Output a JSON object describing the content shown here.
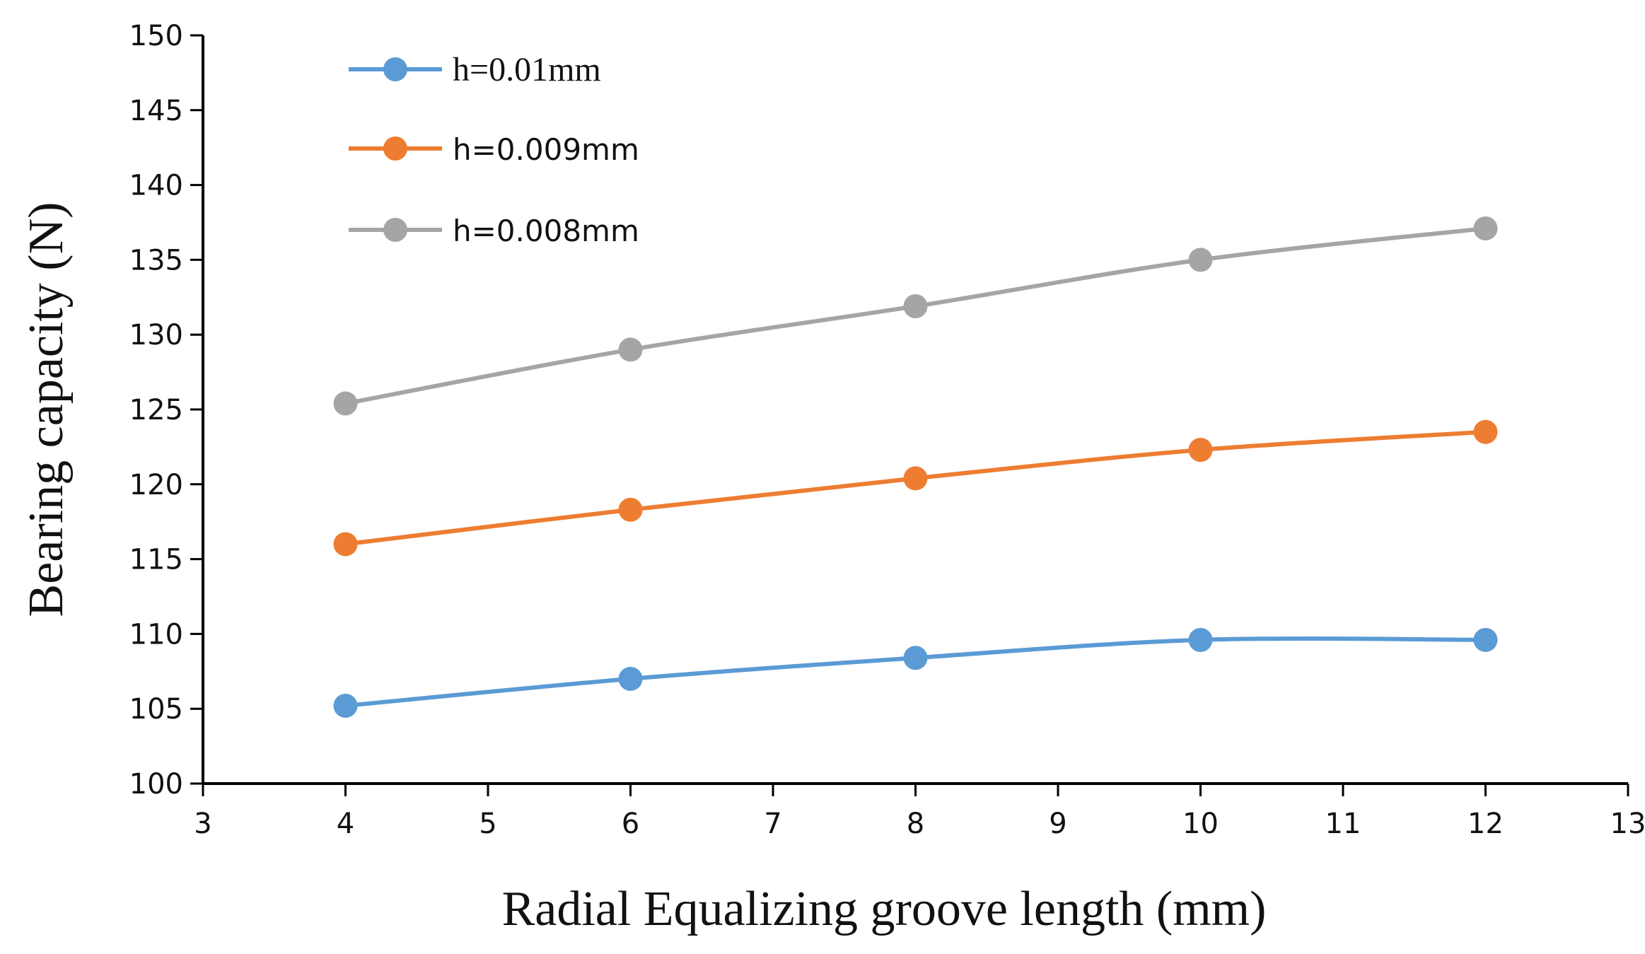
{
  "chart_data": {
    "type": "line",
    "xlabel": "Radial Equalizing groove length (mm)",
    "ylabel": "Bearing capacity (N)",
    "xlim": [
      3,
      13
    ],
    "ylim": [
      100,
      150
    ],
    "x_ticks": [
      "3",
      "4",
      "5",
      "6",
      "7",
      "8",
      "9",
      "10",
      "11",
      "12",
      "13"
    ],
    "y_ticks": [
      "100",
      "105",
      "110",
      "115",
      "120",
      "125",
      "130",
      "135",
      "140",
      "145",
      "150"
    ],
    "grid": false,
    "legend_position": "top-left",
    "series": [
      {
        "name": "h=0.01mm",
        "color": "#5b9bd5",
        "x": [
          4,
          6,
          8,
          10,
          12
        ],
        "values": [
          105.2,
          107.0,
          108.4,
          109.6,
          109.6
        ]
      },
      {
        "name": "h=0.009mm",
        "color": "#ed7d31",
        "x": [
          4,
          6,
          8,
          10,
          12
        ],
        "values": [
          116.0,
          118.3,
          120.4,
          122.3,
          123.5
        ]
      },
      {
        "name": "h=0.008mm",
        "color": "#a5a5a5",
        "x": [
          4,
          6,
          8,
          10,
          12
        ],
        "values": [
          125.4,
          129.0,
          131.9,
          135.0,
          137.1
        ]
      }
    ]
  }
}
